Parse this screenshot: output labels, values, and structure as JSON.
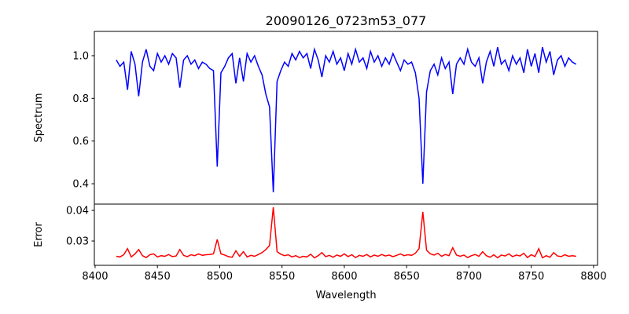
{
  "chart_data": [
    {
      "type": "line",
      "title": "20090126_0723m53_077",
      "xlabel": "",
      "ylabel": "Spectrum",
      "xlim": [
        8399.4,
        8803.2
      ],
      "ylim": [
        0.3045,
        1.1139
      ],
      "yticks": [
        0.4,
        0.6,
        0.8,
        1.0
      ],
      "ytick_labels": [
        "0.4",
        "0.6",
        "0.8",
        "1.0"
      ],
      "color": "#0000ff",
      "grid": false,
      "series": [
        {
          "name": "Spectrum",
          "x_start": 8417,
          "x_step": 3,
          "values": [
            0.98,
            0.95,
            0.97,
            0.84,
            1.02,
            0.96,
            0.81,
            0.97,
            1.03,
            0.95,
            0.93,
            1.01,
            0.97,
            1.0,
            0.96,
            1.01,
            0.99,
            0.85,
            0.98,
            1.0,
            0.96,
            0.98,
            0.94,
            0.97,
            0.96,
            0.94,
            0.93,
            0.48,
            0.92,
            0.95,
            0.99,
            1.01,
            0.87,
            0.99,
            0.88,
            1.01,
            0.97,
            1.0,
            0.95,
            0.91,
            0.82,
            0.76,
            0.36,
            0.88,
            0.93,
            0.97,
            0.95,
            1.01,
            0.98,
            1.02,
            0.99,
            1.01,
            0.94,
            1.03,
            0.98,
            0.9,
            1.0,
            0.97,
            1.02,
            0.96,
            0.99,
            0.93,
            1.01,
            0.96,
            1.03,
            0.97,
            0.99,
            0.94,
            1.02,
            0.97,
            1.0,
            0.95,
            0.99,
            0.96,
            1.01,
            0.97,
            0.93,
            0.98,
            0.96,
            0.97,
            0.92,
            0.8,
            0.4,
            0.83,
            0.93,
            0.96,
            0.91,
            0.99,
            0.94,
            0.97,
            0.82,
            0.96,
            0.99,
            0.96,
            1.03,
            0.97,
            0.95,
            0.99,
            0.87,
            0.97,
            1.02,
            0.95,
            1.04,
            0.96,
            0.98,
            0.93,
            1.0,
            0.96,
            0.99,
            0.92,
            1.03,
            0.95,
            1.01,
            0.92,
            1.04,
            0.97,
            1.02,
            0.91,
            0.98,
            1.0,
            0.95,
            0.99,
            0.97,
            0.96
          ]
        }
      ]
    },
    {
      "type": "line",
      "title": "",
      "xlabel": "Wavelength",
      "ylabel": "Error",
      "xlim": [
        8399.4,
        8803.2
      ],
      "ylim": [
        0.02205,
        0.04205
      ],
      "xticks": [
        8400,
        8450,
        8500,
        8550,
        8600,
        8650,
        8700,
        8750,
        8800
      ],
      "xtick_labels": [
        "8400",
        "8450",
        "8500",
        "8550",
        "8600",
        "8650",
        "8700",
        "8750",
        "8800"
      ],
      "yticks": [
        0.03,
        0.04
      ],
      "ytick_labels": [
        "0.03",
        "0.04"
      ],
      "color": "#ff0000",
      "grid": false,
      "series": [
        {
          "name": "Error",
          "x_start": 8417,
          "x_step": 3,
          "values": [
            0.025,
            0.0248,
            0.0255,
            0.0275,
            0.0248,
            0.0258,
            0.0272,
            0.0252,
            0.0246,
            0.0255,
            0.0258,
            0.0248,
            0.0252,
            0.025,
            0.0256,
            0.0249,
            0.0251,
            0.0272,
            0.0253,
            0.0249,
            0.0255,
            0.0252,
            0.0258,
            0.0253,
            0.0255,
            0.0256,
            0.0258,
            0.0305,
            0.0258,
            0.0254,
            0.0249,
            0.0247,
            0.0268,
            0.025,
            0.0265,
            0.0248,
            0.0253,
            0.025,
            0.0256,
            0.0262,
            0.0272,
            0.0285,
            0.041,
            0.0265,
            0.0257,
            0.0252,
            0.0255,
            0.0248,
            0.0252,
            0.0246,
            0.025,
            0.0248,
            0.0257,
            0.0245,
            0.0252,
            0.0262,
            0.0249,
            0.0253,
            0.0247,
            0.0254,
            0.025,
            0.0258,
            0.0249,
            0.0255,
            0.0246,
            0.0253,
            0.025,
            0.0256,
            0.0248,
            0.0254,
            0.025,
            0.0256,
            0.0251,
            0.0254,
            0.0249,
            0.0253,
            0.0258,
            0.0252,
            0.0255,
            0.0253,
            0.026,
            0.0275,
            0.0395,
            0.027,
            0.0258,
            0.0254,
            0.026,
            0.025,
            0.0256,
            0.0252,
            0.0278,
            0.0254,
            0.025,
            0.0254,
            0.0246,
            0.0252,
            0.0256,
            0.025,
            0.0265,
            0.0252,
            0.0247,
            0.0255,
            0.0245,
            0.0254,
            0.0251,
            0.0258,
            0.0249,
            0.0254,
            0.0251,
            0.026,
            0.0246,
            0.0255,
            0.0249,
            0.0275,
            0.0245,
            0.0252,
            0.0247,
            0.0262,
            0.0251,
            0.0249,
            0.0255,
            0.025,
            0.0252,
            0.025
          ]
        }
      ]
    }
  ]
}
